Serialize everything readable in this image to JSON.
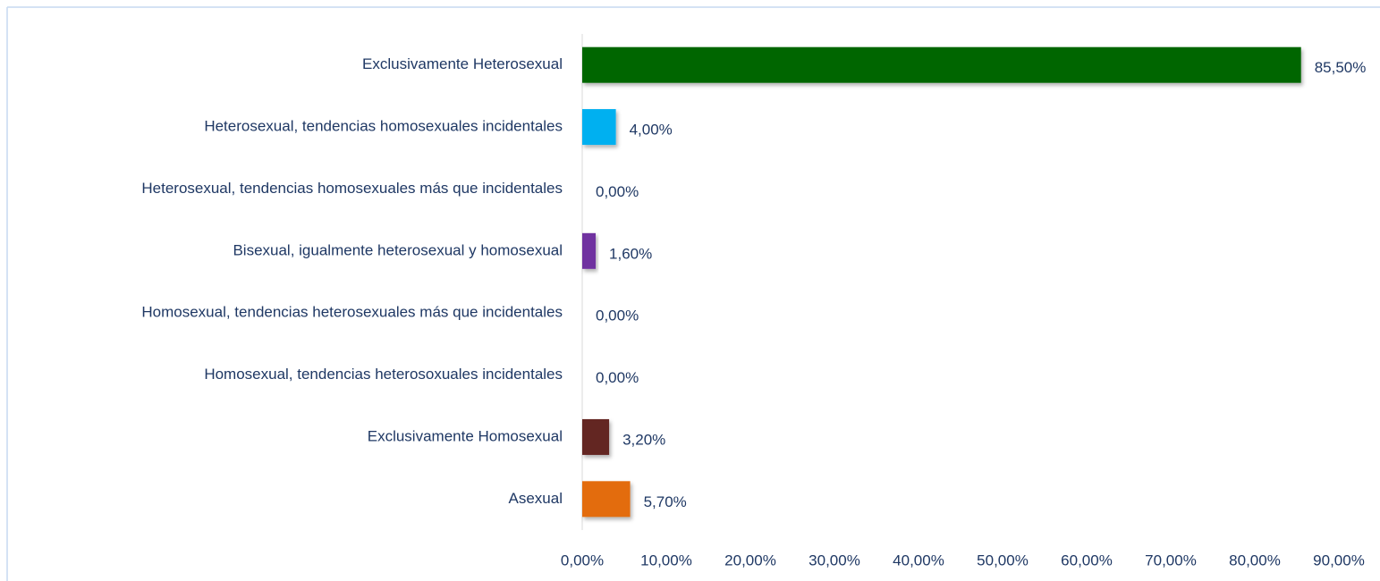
{
  "chart_data": {
    "type": "bar",
    "orientation": "horizontal",
    "categories": [
      "Exclusivamente Heterosexual",
      "Heterosexual, tendencias homosexuales incidentales",
      "Heterosexual, tendencias homosexuales más que incidentales",
      "Bisexual, igualmente heterosexual y homosexual",
      "Homosexual, tendencias heterosexuales más que incidentales",
      "Homosexual, tendencias heterosoxuales incidentales",
      "Exclusivamente Homosexual",
      "Asexual"
    ],
    "values": [
      85.5,
      4,
      0,
      1.6,
      0,
      0,
      3.2,
      5.7
    ],
    "value_labels": [
      "85,50%",
      "4,00%",
      "0,00%",
      "1,60%",
      "0,00%",
      "0,00%",
      "3,20%",
      "5,70%"
    ],
    "colors": [
      "#006600",
      "#00b0f0",
      "#4f81bd",
      "#7030a0",
      "#4f81bd",
      "#4f81bd",
      "#632523",
      "#e36c09"
    ],
    "xlim": [
      0,
      90
    ],
    "xticks": [
      {
        "value": 0,
        "label": "0,00%"
      },
      {
        "value": 10,
        "label": "10,00%"
      },
      {
        "value": 20,
        "label": "20,00%"
      },
      {
        "value": 30,
        "label": "30,00%"
      },
      {
        "value": 40,
        "label": "40,00%"
      },
      {
        "value": 50,
        "label": "50,00%"
      },
      {
        "value": 60,
        "label": "60,00%"
      },
      {
        "value": 70,
        "label": "70,00%"
      },
      {
        "value": 80,
        "label": "80,00%"
      },
      {
        "value": 90,
        "label": "90,00%"
      }
    ],
    "grid": false
  }
}
